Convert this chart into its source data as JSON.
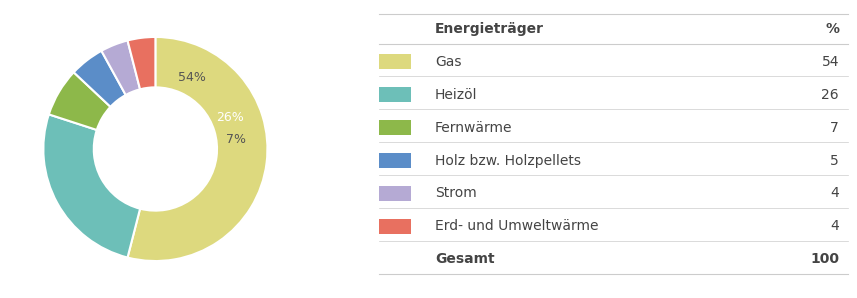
{
  "labels": [
    "Gas",
    "Heizöl",
    "Fernwärme",
    "Holz bzw. Holzpellets",
    "Strom",
    "Erd- und Umweltwärme"
  ],
  "values": [
    54,
    26,
    7,
    5,
    4,
    4
  ],
  "colors": [
    "#ddd97e",
    "#6dbfb8",
    "#8db84a",
    "#5b8dc8",
    "#b5aad4",
    "#e87060"
  ],
  "table_header": [
    "Energieträger",
    "%"
  ],
  "table_rows": [
    [
      "Gas",
      "54"
    ],
    [
      "Heizöl",
      "26"
    ],
    [
      "Fernwärme",
      "7"
    ],
    [
      "Holz bzw. Holzpellets",
      "5"
    ],
    [
      "Strom",
      "4"
    ],
    [
      "Erd- und Umweltwärme",
      "4"
    ]
  ],
  "table_footer": [
    "Gesamt",
    "100"
  ],
  "background_color": "#ffffff",
  "text_color": "#444444",
  "fontsize_table": 10,
  "fontsize_pct": 9
}
